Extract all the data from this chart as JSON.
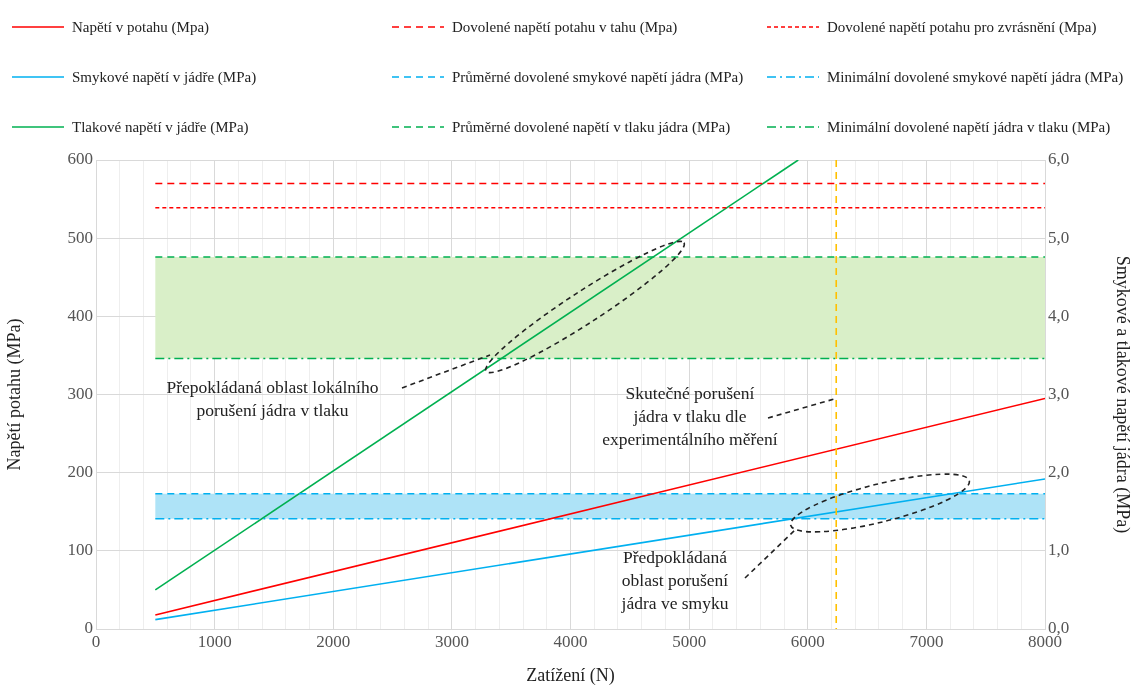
{
  "chart_data": {
    "type": "line",
    "xlabel": "Zatížení (N)",
    "ylabel": "Napětí potahu (MPa)",
    "y2label": "Smykové a tlakové napětí jádra (MPa)",
    "xlim": [
      0,
      8000
    ],
    "xticks": [
      0,
      {
        "value": 200,
        "label": null
      },
      {
        "value": 400,
        "label": null
      },
      {
        "value": 600,
        "label": null
      },
      {
        "value": 800,
        "label": null
      },
      1000,
      {
        "value": 1200,
        "label": null
      },
      {
        "value": 1400,
        "label": null
      },
      {
        "value": 1600,
        "label": null
      },
      {
        "value": 1800,
        "label": null
      },
      2000,
      {
        "value": 2200,
        "label": null
      },
      {
        "value": 2400,
        "label": null
      },
      {
        "value": 2600,
        "label": null
      },
      {
        "value": 2800,
        "label": null
      },
      3000,
      {
        "value": 3200,
        "label": null
      },
      {
        "value": 3400,
        "label": null
      },
      {
        "value": 3600,
        "label": null
      },
      {
        "value": 3800,
        "label": null
      },
      4000,
      {
        "value": 4200,
        "label": null
      },
      {
        "value": 4400,
        "label": null
      },
      {
        "value": 4600,
        "label": null
      },
      {
        "value": 4800,
        "label": null
      },
      5000,
      {
        "value": 5200,
        "label": null
      },
      {
        "value": 5400,
        "label": null
      },
      {
        "value": 5600,
        "label": null
      },
      {
        "value": 5800,
        "label": null
      },
      6000,
      {
        "value": 6200,
        "label": null
      },
      {
        "value": 6400,
        "label": null
      },
      {
        "value": 6600,
        "label": null
      },
      {
        "value": 6800,
        "label": null
      },
      7000,
      {
        "value": 7200,
        "label": null
      },
      {
        "value": 7400,
        "label": null
      },
      {
        "value": 7600,
        "label": null
      },
      {
        "value": 7800,
        "label": null
      },
      8000
    ],
    "ylim": [
      0,
      600
    ],
    "yticks": [
      0,
      100,
      200,
      300,
      400,
      500,
      600
    ],
    "y2lim": [
      0,
      6
    ],
    "y2ticks": [
      {
        "value": 0,
        "label": "0,0"
      },
      {
        "value": 1,
        "label": "1,0"
      },
      {
        "value": 2,
        "label": "2,0"
      },
      {
        "value": 3,
        "label": "3,0"
      },
      {
        "value": 4,
        "label": "4,0"
      },
      {
        "value": 5,
        "label": "5,0"
      },
      {
        "value": 6,
        "label": "6,0"
      }
    ],
    "grid": true,
    "legend": "top",
    "marker": "none",
    "series": [
      {
        "name": "Napětí v potahu (Mpa)",
        "color": "#ff0000",
        "line_style": "solid",
        "x": [
          500,
          8000
        ],
        "values": [
          18,
          295
        ]
      },
      {
        "name": "Dovolené napětí potahu v tahu (Mpa)",
        "color": "#ff0000",
        "line_style": "dashed",
        "x": [
          500,
          8000
        ],
        "values": [
          570,
          570
        ]
      },
      {
        "name": "Dovolené napětí potahu pro zvrásnění (Mpa)",
        "color": "#ff0000",
        "line_style": "dotted",
        "x": [
          500,
          8000
        ],
        "values": [
          539,
          539
        ]
      },
      {
        "name": "Smykové napětí v jádře (MPa)",
        "color": "#00b0f0",
        "line_style": "solid",
        "axis": "y2",
        "x": [
          500,
          8000
        ],
        "values": [
          0.12,
          1.92
        ]
      },
      {
        "name": "Průměrné dovolené smykové napětí jádra (MPa)",
        "color": "#00b0f0",
        "line_style": "dashed",
        "axis": "y2",
        "x": [
          500,
          8000
        ],
        "values": [
          1.73,
          1.73
        ]
      },
      {
        "name": "Minimální dovolené smykové napětí jádra (MPa)",
        "color": "#00b0f0",
        "line_style": "dashdot",
        "axis": "y2",
        "x": [
          500,
          8000
        ],
        "values": [
          1.41,
          1.41
        ]
      },
      {
        "name": "Tlakové napětí v jádře (MPa)",
        "color": "#00b050",
        "line_style": "solid",
        "axis": "y2",
        "x": [
          500,
          5920
        ],
        "values": [
          0.5,
          6.0
        ]
      },
      {
        "name": "Průměrné dovolené napětí v tlaku jádra (MPa)",
        "color": "#00b050",
        "line_style": "dashed",
        "axis": "y2",
        "x": [
          500,
          8000
        ],
        "values": [
          4.76,
          4.76
        ]
      },
      {
        "name": "Minimální dovolené napětí jádra v tlaku (MPa)",
        "color": "#00b050",
        "line_style": "dashdot",
        "axis": "y2",
        "x": [
          500,
          8000
        ],
        "values": [
          3.46,
          3.46
        ]
      }
    ],
    "bands": [
      {
        "axis": "y2",
        "from": 3.46,
        "to": 4.76,
        "color": "#d9efc8"
      },
      {
        "axis": "y2",
        "from": 1.41,
        "to": 1.73,
        "color": "#aee3f7"
      }
    ],
    "ref_lines": [
      {
        "axis": "x",
        "value": 6240,
        "color": "#ffc000",
        "line_style": "dashed"
      }
    ],
    "annotations": [
      "Přepokládaná oblast lokálního porušení jádra v tlaku",
      {
        "text": "Skutečné porušení jádra v tlaku dle experimentálního měření",
        "x": 6240,
        "y": 295
      },
      "Předpokládaná oblast porušení jádra ve smyku"
    ]
  }
}
